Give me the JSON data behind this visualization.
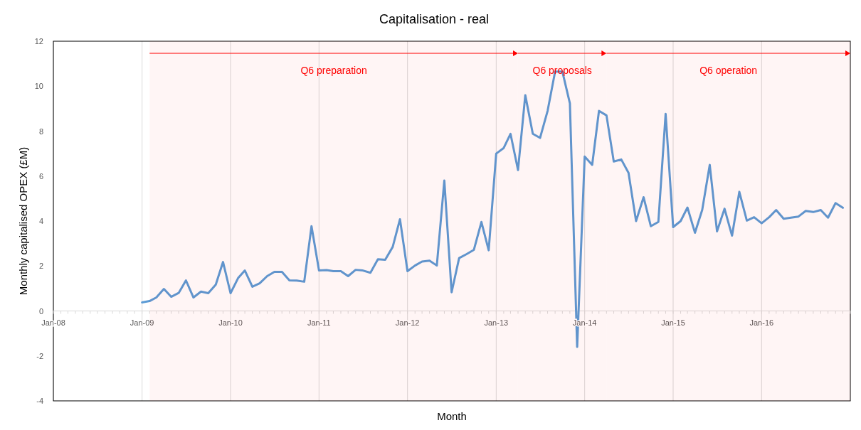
{
  "chart_data": {
    "type": "line",
    "title": "Capitalisation - real",
    "xlabel": "Month",
    "ylabel": "Monthly capitalised OPEX (£M)",
    "x": [
      "2009-01",
      "2009-02",
      "2009-03",
      "2009-04",
      "2009-05",
      "2009-06",
      "2009-07",
      "2009-08",
      "2009-09",
      "2009-10",
      "2009-11",
      "2009-12",
      "2010-01",
      "2010-02",
      "2010-03",
      "2010-04",
      "2010-05",
      "2010-06",
      "2010-07",
      "2010-08",
      "2010-09",
      "2010-10",
      "2010-11",
      "2010-12",
      "2011-01",
      "2011-02",
      "2011-03",
      "2011-04",
      "2011-05",
      "2011-06",
      "2011-07",
      "2011-08",
      "2011-09",
      "2011-10",
      "2011-11",
      "2011-12",
      "2012-01",
      "2012-02",
      "2012-03",
      "2012-04",
      "2012-05",
      "2012-06",
      "2012-07",
      "2012-08",
      "2012-09",
      "2012-10",
      "2012-11",
      "2012-12",
      "2013-01",
      "2013-02",
      "2013-03",
      "2013-04",
      "2013-05",
      "2013-06",
      "2013-07",
      "2013-08",
      "2013-09",
      "2013-10",
      "2013-11",
      "2013-12",
      "2014-01",
      "2014-02",
      "2014-03",
      "2014-04",
      "2014-05",
      "2014-06",
      "2014-07",
      "2014-08",
      "2014-09",
      "2014-10",
      "2014-11",
      "2014-12",
      "2015-01",
      "2015-02",
      "2015-03",
      "2015-04",
      "2015-05",
      "2015-06",
      "2015-07",
      "2015-08",
      "2015-09",
      "2015-10",
      "2015-11",
      "2015-12",
      "2016-01",
      "2016-02",
      "2016-03",
      "2016-04",
      "2016-05",
      "2016-06",
      "2016-07",
      "2016-08",
      "2016-09",
      "2016-10",
      "2016-11",
      "2016-12"
    ],
    "series": [
      {
        "color": "#5b9bd5",
        "values": [
          0.38,
          0.44,
          0.6,
          0.98,
          0.63,
          0.8,
          1.36,
          0.6,
          0.86,
          0.79,
          1.17,
          2.18,
          0.79,
          1.46,
          1.8,
          1.08,
          1.23,
          1.55,
          1.74,
          1.74,
          1.36,
          1.35,
          1.3,
          3.77,
          1.8,
          1.82,
          1.77,
          1.77,
          1.55,
          1.83,
          1.8,
          1.7,
          2.3,
          2.28,
          2.85,
          4.08,
          1.77,
          2.02,
          2.2,
          2.24,
          2.02,
          5.8,
          0.83,
          2.35,
          2.53,
          2.72,
          3.96,
          2.7,
          7.0,
          7.25,
          7.88,
          6.27,
          9.6,
          7.88,
          7.7,
          8.9,
          10.65,
          10.65,
          9.24,
          -1.6,
          6.87,
          6.5,
          8.9,
          8.7,
          6.65,
          6.74,
          6.14,
          4.0,
          5.06,
          3.77,
          3.96,
          8.77,
          3.73,
          4.0,
          4.6,
          3.48,
          4.5,
          6.5,
          3.54,
          4.55,
          3.35,
          5.3,
          4.02,
          4.17,
          3.9,
          4.17,
          4.49,
          4.1,
          4.15,
          4.2,
          4.45,
          4.4,
          4.49,
          4.15,
          4.8,
          4.59
        ]
      }
    ],
    "xlim": [
      "2008-01",
      "2017-01"
    ],
    "xticks": [
      {
        "value": "2008-01",
        "label": "Jan-08"
      },
      {
        "value": "2009-01",
        "label": "Jan-09"
      },
      {
        "value": "2010-01",
        "label": "Jan-10"
      },
      {
        "value": "2011-01",
        "label": "Jan-11"
      },
      {
        "value": "2012-01",
        "label": "Jan-12"
      },
      {
        "value": "2013-01",
        "label": "Jan-13"
      },
      {
        "value": "2014-01",
        "label": "Jan-14"
      },
      {
        "value": "2015-01",
        "label": "Jan-15"
      },
      {
        "value": "2016-01",
        "label": "Jan-16"
      }
    ],
    "ylim": [
      -4,
      12
    ],
    "yticks": [
      -4,
      -2,
      0,
      2,
      4,
      6,
      8,
      10,
      12
    ],
    "grid": "x",
    "marker": "none",
    "line_style": "solid",
    "bands": [
      {
        "axis": "x",
        "from": "2009-02",
        "to": "2013-04",
        "label": "Q6 preparation",
        "color": "#ff0000"
      },
      {
        "axis": "x",
        "from": "2013-04",
        "to": "2014-04",
        "label": "Q6 proposals",
        "color": "#ff0000"
      },
      {
        "axis": "x",
        "from": "2014-04",
        "to": "2017-01",
        "label": "Q6 operation",
        "color": "#ff0000"
      }
    ]
  }
}
